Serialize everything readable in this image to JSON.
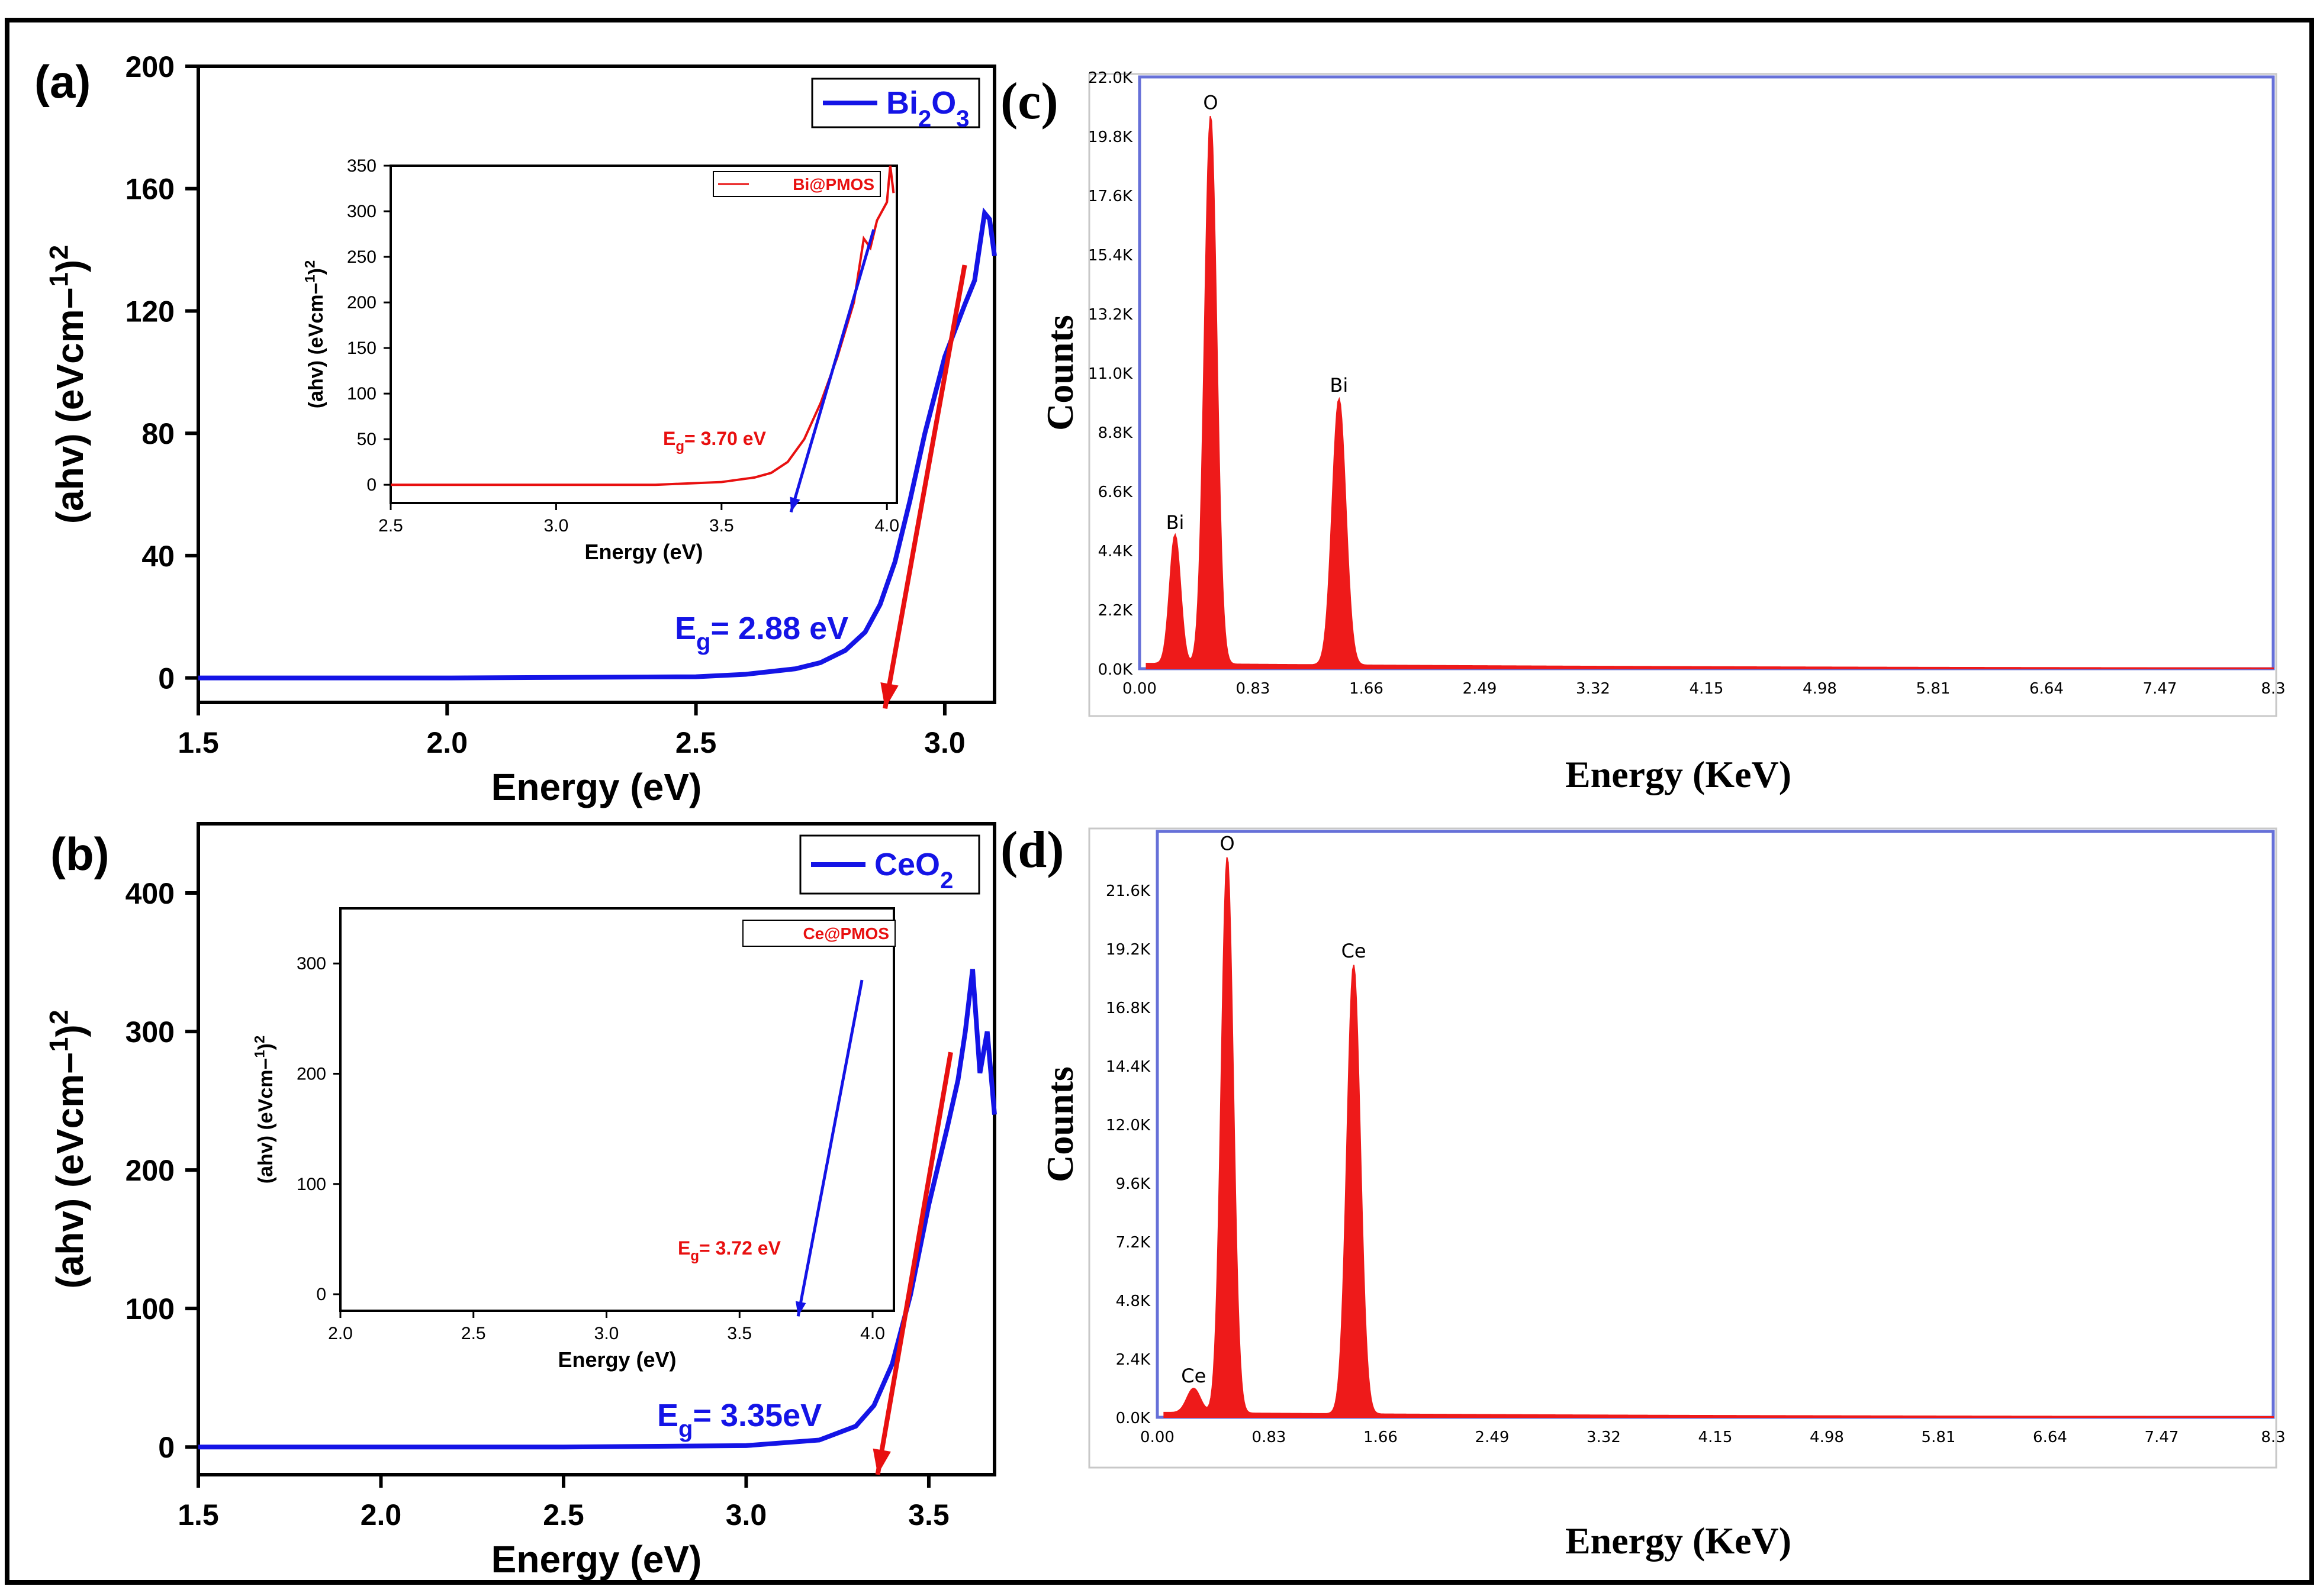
{
  "colors": {
    "blue": "#1414e6",
    "red": "#e81010",
    "eds_red": "#ee1a1a",
    "frame_blue": "#6670d8",
    "black": "#000000"
  },
  "panels": {
    "a": {
      "label": "(a)"
    },
    "b": {
      "label": "(b)"
    },
    "c": {
      "label": "(c)"
    },
    "d": {
      "label": "(d)"
    }
  },
  "chart_data": [
    {
      "id": "a",
      "type": "line",
      "title": "",
      "xlabel": "Energy (eV)",
      "ylabel": "(ahv) (eVcm−1)2",
      "xlim": [
        1.5,
        3.1
      ],
      "ylim": [
        -8,
        200
      ],
      "xticks": [
        1.5,
        2.0,
        2.5,
        3.0
      ],
      "xtick_labels": [
        "1.5",
        "2.0",
        "2.5",
        "3.0"
      ],
      "yticks": [
        0,
        40,
        80,
        120,
        160,
        200
      ],
      "ytick_labels": [
        "0",
        "40",
        "80",
        "120",
        "160",
        "200"
      ],
      "legend": "Bi2O3",
      "series": [
        {
          "name": "Bi2O3",
          "x": [
            1.5,
            2.0,
            2.5,
            2.6,
            2.7,
            2.75,
            2.8,
            2.84,
            2.87,
            2.9,
            2.93,
            2.96,
            3.0,
            3.04,
            3.06,
            3.08,
            3.09,
            3.1
          ],
          "y": [
            0,
            0,
            0.4,
            1.2,
            3,
            5,
            9,
            15,
            24,
            38,
            58,
            80,
            105,
            122,
            130,
            152,
            150,
            138
          ]
        }
      ],
      "tangent": {
        "x": [
          3.04,
          2.88
        ],
        "y": [
          135,
          -10
        ]
      },
      "annotation": "Eg= 2.88 eV",
      "inset": {
        "xlabel": "Energy (eV)",
        "ylabel": "(ahv) (eVcm−1)2",
        "xlim": [
          2.5,
          4.03
        ],
        "ylim": [
          -20,
          350
        ],
        "xticks": [
          2.5,
          3.0,
          3.5,
          4.0
        ],
        "xtick_labels": [
          "2.5",
          "3.0",
          "3.5",
          "4.0"
        ],
        "yticks": [
          0,
          50,
          100,
          150,
          200,
          250,
          300,
          350
        ],
        "ytick_labels": [
          "0",
          "50",
          "100",
          "150",
          "200",
          "250",
          "300",
          "350"
        ],
        "legend": "Bi@PMOS",
        "series": [
          {
            "name": "Bi@PMOS",
            "x": [
              2.5,
              3.0,
              3.3,
              3.5,
              3.6,
              3.65,
              3.7,
              3.75,
              3.8,
              3.85,
              3.9,
              3.93,
              3.95,
              3.97,
              4.0,
              4.01,
              4.02
            ],
            "y": [
              0,
              0,
              0,
              3,
              8,
              13,
              25,
              50,
              90,
              140,
              200,
              270,
              260,
              290,
              310,
              350,
              320
            ]
          }
        ],
        "tangent": {
          "x": [
            3.96,
            3.71
          ],
          "y": [
            280,
            -30
          ]
        },
        "annotation": "Eg= 3.70 eV"
      }
    },
    {
      "id": "b",
      "type": "line",
      "title": "",
      "xlabel": "Energy (eV)",
      "ylabel": "(ahv) (eVcm−1)2",
      "xlim": [
        1.5,
        3.68
      ],
      "ylim": [
        -20,
        450
      ],
      "xticks": [
        1.5,
        2.0,
        2.5,
        3.0,
        3.5
      ],
      "xtick_labels": [
        "1.5",
        "2.0",
        "2.5",
        "3.0",
        "3.5"
      ],
      "yticks": [
        0,
        100,
        200,
        300,
        400
      ],
      "ytick_labels": [
        "0",
        "100",
        "200",
        "300",
        "400"
      ],
      "legend": "CeO2",
      "series": [
        {
          "name": "CeO2",
          "x": [
            1.5,
            2.0,
            2.5,
            3.0,
            3.2,
            3.3,
            3.35,
            3.4,
            3.45,
            3.5,
            3.55,
            3.58,
            3.6,
            3.62,
            3.64,
            3.66,
            3.68
          ],
          "y": [
            0,
            0,
            0,
            1,
            5,
            15,
            30,
            60,
            110,
            175,
            230,
            265,
            300,
            345,
            270,
            300,
            240
          ]
        }
      ],
      "tangent": {
        "x": [
          3.56,
          3.36
        ],
        "y": [
          285,
          -20
        ]
      },
      "annotation": "Eg= 3.35eV",
      "inset": {
        "xlabel": "Energy (eV)",
        "ylabel": "(ahv) (eVcm−1)2",
        "xlim": [
          2.0,
          4.08
        ],
        "ylim": [
          -15,
          350
        ],
        "xticks": [
          2.0,
          2.5,
          3.0,
          3.5,
          4.0
        ],
        "xtick_labels": [
          "2.0",
          "2.5",
          "3.0",
          "3.5",
          "4.0"
        ],
        "yticks": [
          0,
          100,
          200,
          300
        ],
        "ytick_labels": [
          "0",
          "100",
          "200",
          "300"
        ],
        "legend": "Ce@PMOS",
        "series": [],
        "tangent": {
          "x": [
            3.96,
            3.72
          ],
          "y": [
            285,
            -20
          ]
        },
        "annotation": "Eg= 3.72 eV"
      }
    },
    {
      "id": "c",
      "type": "area",
      "title": "",
      "xlabel": "Energy (KeV)",
      "ylabel": "Counts",
      "xlim": [
        0,
        8.3
      ],
      "ylim": [
        0,
        22000
      ],
      "xtick_labels": [
        "0.00",
        "0.83",
        "1.66",
        "2.49",
        "3.32",
        "4.15",
        "4.98",
        "5.81",
        "6.64",
        "7.47",
        "8.3"
      ],
      "ytick_labels": [
        "0.0K",
        "2.2K",
        "4.4K",
        "6.6K",
        "8.8K",
        "11.0K",
        "13.2K",
        "15.4K",
        "17.6K",
        "19.8K",
        "22.0K"
      ],
      "peaks": [
        {
          "label": "Bi",
          "x": 0.26,
          "y": 4800,
          "width": 0.04
        },
        {
          "label": "O",
          "x": 0.52,
          "y": 20400,
          "width": 0.045
        },
        {
          "label": "Bi",
          "x": 1.46,
          "y": 9900,
          "width": 0.05
        }
      ],
      "baseline": 200
    },
    {
      "id": "d",
      "type": "area",
      "title": "",
      "xlabel": "Energy (KeV)",
      "ylabel": "Counts",
      "xlim": [
        0,
        8.3
      ],
      "ylim": [
        0,
        24000
      ],
      "xtick_labels": [
        "0.00",
        "0.83",
        "1.66",
        "2.49",
        "3.32",
        "4.15",
        "4.98",
        "5.81",
        "6.64",
        "7.47",
        "8.3"
      ],
      "ytick_labels": [
        "0.0K",
        "2.4K",
        "4.8K",
        "7.2K",
        "9.6K",
        "12.0K",
        "14.4K",
        "16.8K",
        "19.2K",
        "21.6K"
      ],
      "peaks": [
        {
          "label": "Ce",
          "x": 0.27,
          "y": 1000,
          "width": 0.05
        },
        {
          "label": "O",
          "x": 0.52,
          "y": 22800,
          "width": 0.045
        },
        {
          "label": "Ce",
          "x": 1.46,
          "y": 18400,
          "width": 0.05
        }
      ],
      "baseline": 200
    }
  ]
}
